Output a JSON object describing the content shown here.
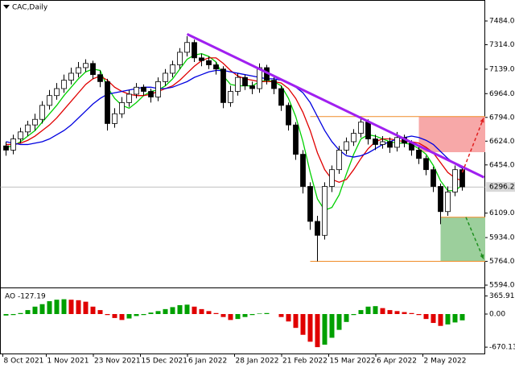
{
  "chart_data": [
    {
      "type": "candlestick",
      "title": "CAC,Daily",
      "open": [
        6590,
        6560,
        6640,
        6690,
        6740,
        6780,
        6880,
        6950,
        7000,
        7060,
        7110,
        7150,
        7180,
        7100,
        7050,
        6750,
        6820,
        6900,
        6960,
        7010,
        6980,
        6940,
        7050,
        7110,
        7170,
        7260,
        7330,
        7220,
        7200,
        7170,
        7140,
        6900,
        6980,
        7080,
        7020,
        7000,
        7150,
        7060,
        7000,
        6880,
        6740,
        6530,
        6300,
        6050,
        5950,
        6300,
        6420,
        6560,
        6620,
        6680,
        6760,
        6640,
        6600,
        6620,
        6580,
        6650,
        6610,
        6560,
        6500,
        6420,
        6300,
        6120,
        6260,
        6420
      ],
      "high": [
        6620,
        6670,
        6720,
        6770,
        6820,
        6910,
        6990,
        7040,
        7100,
        7150,
        7190,
        7210,
        7200,
        7130,
        7070,
        6860,
        6940,
        6990,
        7040,
        7030,
        7000,
        7080,
        7140,
        7200,
        7290,
        7375,
        7350,
        7250,
        7230,
        7190,
        7160,
        7020,
        7110,
        7100,
        7050,
        7180,
        7170,
        7090,
        7020,
        6900,
        6760,
        6560,
        6330,
        6090,
        6330,
        6450,
        6590,
        6650,
        6710,
        6800,
        6780,
        6670,
        6660,
        6650,
        6690,
        6670,
        6630,
        6590,
        6520,
        6440,
        6320,
        6300,
        6450,
        6440
      ],
      "low": [
        6520,
        6530,
        6610,
        6660,
        6700,
        6750,
        6850,
        6920,
        6970,
        7030,
        7080,
        7120,
        7070,
        7010,
        6700,
        6720,
        6790,
        6870,
        6930,
        6950,
        6900,
        6910,
        7020,
        7080,
        7140,
        7230,
        7190,
        7160,
        7140,
        7100,
        6860,
        6870,
        6950,
        6990,
        6960,
        6970,
        7030,
        6960,
        6840,
        6700,
        6490,
        6250,
        5990,
        5764,
        5920,
        6260,
        6390,
        6530,
        6590,
        6650,
        6600,
        6560,
        6570,
        6540,
        6550,
        6580,
        6520,
        6460,
        6380,
        6260,
        6030,
        6090,
        6230,
        6270
      ],
      "close": [
        6560,
        6640,
        6690,
        6740,
        6780,
        6880,
        6950,
        7000,
        7060,
        7110,
        7150,
        7180,
        7100,
        7050,
        6750,
        6820,
        6900,
        6960,
        7010,
        6980,
        6940,
        7050,
        7110,
        7170,
        7260,
        7330,
        7220,
        7200,
        7170,
        7140,
        6900,
        6980,
        7080,
        7020,
        7000,
        7150,
        7060,
        7000,
        6880,
        6740,
        6530,
        6300,
        6050,
        5950,
        6300,
        6420,
        6560,
        6620,
        6680,
        6760,
        6640,
        6600,
        6620,
        6580,
        6650,
        6610,
        6560,
        6500,
        6420,
        6300,
        6120,
        6260,
        6420,
        6296.2
      ],
      "series": [
        {
          "color": "#00d000",
          "values": [
            6580,
            6590,
            6620,
            6660,
            6700,
            6760,
            6820,
            6880,
            6950,
            7010,
            7070,
            7120,
            7140,
            7130,
            7010,
            6930,
            6880,
            6860,
            6900,
            6950,
            6980,
            6990,
            7020,
            7070,
            7140,
            7210,
            7240,
            7250,
            7230,
            7190,
            7090,
            7030,
            7020,
            7020,
            7020,
            7050,
            7060,
            7050,
            7020,
            6930,
            6800,
            6620,
            6400,
            6210,
            6130,
            6150,
            6240,
            6390,
            6530,
            6640,
            6670,
            6660,
            6640,
            6620,
            6610,
            6610,
            6600,
            6570,
            6530,
            6450,
            6340,
            6270,
            6270,
            6310
          ]
        },
        {
          "color": "#e00000",
          "values": [
            6600,
            6600,
            6610,
            6630,
            6660,
            6700,
            6740,
            6790,
            6850,
            6910,
            6970,
            7030,
            7070,
            7090,
            7060,
            7010,
            6980,
            6960,
            6950,
            6950,
            6960,
            6980,
            7000,
            7020,
            7060,
            7110,
            7160,
            7200,
            7220,
            7220,
            7180,
            7130,
            7090,
            7070,
            7060,
            7050,
            7050,
            7050,
            7040,
            7000,
            6930,
            6830,
            6700,
            6540,
            6420,
            6350,
            6330,
            6350,
            6420,
            6500,
            6570,
            6620,
            6640,
            6640,
            6630,
            6620,
            6620,
            6610,
            6580,
            6540,
            6470,
            6400,
            6360,
            6340
          ]
        },
        {
          "color": "#0000e0",
          "values": [
            6620,
            6610,
            6600,
            6600,
            6610,
            6620,
            6640,
            6670,
            6700,
            6740,
            6790,
            6840,
            6890,
            6930,
            6960,
            6970,
            6980,
            6990,
            7000,
            7010,
            7010,
            7000,
            7000,
            7010,
            7030,
            7050,
            7080,
            7100,
            7120,
            7130,
            7130,
            7120,
            7110,
            7100,
            7090,
            7080,
            7070,
            7070,
            7060,
            7040,
            7010,
            6970,
            6900,
            6800,
            6700,
            6620,
            6560,
            6520,
            6510,
            6520,
            6540,
            6570,
            6600,
            6620,
            6640,
            6650,
            6660,
            6650,
            6630,
            6600,
            6550,
            6500,
            6460,
            6430
          ]
        }
      ],
      "ylim": [
        5577,
        7634
      ],
      "yticks": [
        {
          "value": 7484,
          "label": "7484.0"
        },
        {
          "value": 7314,
          "label": "7314.0"
        },
        {
          "value": 7139,
          "label": "7139.0"
        },
        {
          "value": 6964,
          "label": "6964.0"
        },
        {
          "value": 6794,
          "label": "6794.0"
        },
        {
          "value": 6624,
          "label": "6624.0"
        },
        {
          "value": 6454,
          "label": "6454.0"
        },
        {
          "value": 6109,
          "label": "6109.0"
        },
        {
          "value": 5934,
          "label": "5934.0"
        },
        {
          "value": 5764,
          "label": "5764.0"
        },
        {
          "value": 5594,
          "label": "5594.0"
        }
      ],
      "trendline": {
        "start": [
          25,
          7390
        ],
        "end": [
          66,
          6365
        ],
        "color": "#a020f0"
      },
      "zones": [
        {
          "from": 6545,
          "to": 6800,
          "start": 57,
          "color": "#f7a8a8"
        },
        {
          "from": 5764,
          "to": 6080,
          "start": 60,
          "color": "#9ccf9c"
        }
      ],
      "levels": [
        {
          "value": 6800,
          "start": 42,
          "color": "#f08c28"
        },
        {
          "value": 5764,
          "start": 42,
          "color": "#f08c28"
        },
        {
          "value": 6080,
          "start": 60,
          "color": "#f08c28"
        }
      ],
      "arrows": [
        {
          "from": [
            63,
            6400
          ],
          "to": [
            66,
            6790
          ],
          "color": "#e02020"
        },
        {
          "from": [
            63.5,
            6080
          ],
          "to": [
            66,
            5780
          ],
          "color": "#209020"
        }
      ]
    },
    {
      "type": "bar",
      "name": "AO",
      "values": [
        -30,
        -20,
        20,
        80,
        150,
        200,
        260,
        290,
        300,
        290,
        280,
        250,
        150,
        80,
        -20,
        -80,
        -120,
        -90,
        -40,
        -20,
        30,
        60,
        100,
        140,
        180,
        190,
        150,
        100,
        60,
        20,
        -60,
        -120,
        -100,
        -60,
        -20,
        10,
        20,
        0,
        -60,
        -150,
        -280,
        -420,
        -560,
        -670,
        -620,
        -480,
        -320,
        -160,
        -20,
        80,
        150,
        160,
        120,
        80,
        60,
        40,
        20,
        -20,
        -100,
        -180,
        -240,
        -210,
        -170,
        -127.19
      ],
      "colors": {
        "up": "#00a000",
        "down": "#e00000"
      },
      "ylim": [
        -815,
        489
      ],
      "yticks": [
        365.91,
        {
          "value": 0,
          "label": "0.00"
        },
        -670.13
      ],
      "xticks": [
        {
          "value": 0,
          "label": "8 Oct 2021"
        },
        {
          "value": 6,
          "label": "1 Nov 2021"
        },
        {
          "value": 12.5,
          "label": "23 Nov 2021"
        },
        {
          "value": 19,
          "label": "15 Dec 2021"
        },
        {
          "value": 25.5,
          "label": "6 Jan 2022"
        },
        {
          "value": 32,
          "label": "28 Jan 2022"
        },
        {
          "value": 38.5,
          "label": "21 Feb 2022"
        },
        {
          "value": 45,
          "label": "15 Mar 2022"
        },
        {
          "value": 51.5,
          "label": "6 Apr 2022"
        },
        {
          "value": 58,
          "label": "2 May 2022"
        }
      ]
    }
  ]
}
